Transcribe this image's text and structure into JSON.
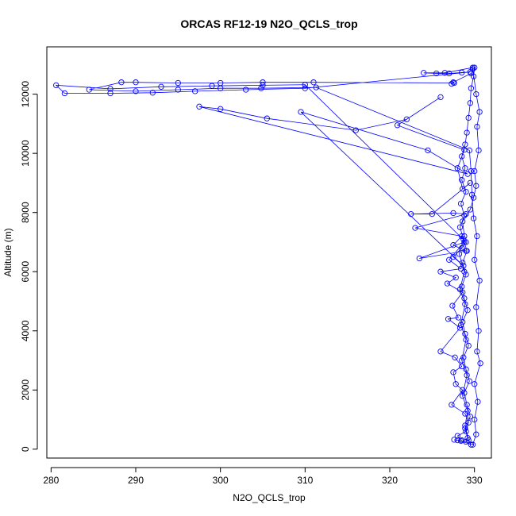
{
  "chart_data": {
    "type": "line",
    "title": "ORCAS RF12-19 N2O_QCLS_trop",
    "xlabel": "N2O_QCLS_trop",
    "ylabel": "Altitude (m)",
    "xlim": [
      279.5,
      332.0
    ],
    "ylim": [
      -300,
      13600
    ],
    "x_ticks": [
      280,
      290,
      300,
      310,
      320,
      330
    ],
    "y_ticks": [
      0,
      2000,
      4000,
      6000,
      8000,
      10000,
      12000
    ],
    "grid": false,
    "color": "#0000ff",
    "marker": "open-circle",
    "series": [
      {
        "points": [
          [
            329.6,
            150
          ],
          [
            329.2,
            380
          ],
          [
            328.9,
            700
          ],
          [
            329.5,
            1100
          ],
          [
            329.1,
            1500
          ],
          [
            328.8,
            1900
          ],
          [
            329.4,
            2300
          ],
          [
            329.0,
            2700
          ],
          [
            328.7,
            3100
          ],
          [
            329.3,
            3500
          ],
          [
            328.9,
            3900
          ],
          [
            328.6,
            4300
          ],
          [
            329.2,
            4700
          ],
          [
            328.8,
            5100
          ],
          [
            328.5,
            5500
          ],
          [
            329.0,
            5900
          ],
          [
            328.6,
            6300
          ],
          [
            329.1,
            6700
          ],
          [
            328.7,
            7100
          ],
          [
            328.3,
            7500
          ],
          [
            328.8,
            7900
          ],
          [
            328.4,
            8300
          ],
          [
            329.0,
            8700
          ],
          [
            328.5,
            9100
          ],
          [
            328.9,
            9500
          ],
          [
            328.5,
            9900
          ],
          [
            328.9,
            10300
          ],
          [
            329.1,
            10700
          ],
          [
            329.3,
            11200
          ],
          [
            329.5,
            11700
          ],
          [
            329.6,
            12200
          ],
          [
            329.9,
            12600
          ],
          [
            330.0,
            12900
          ],
          [
            329.8,
            12850
          ],
          [
            329.6,
            12700
          ],
          [
            327.5,
            12400
          ],
          [
            327.3,
            12350
          ],
          [
            327.6,
            12380
          ],
          [
            311.0,
            12400
          ],
          [
            305.0,
            12400
          ],
          [
            300.0,
            12380
          ],
          [
            295.0,
            12380
          ],
          [
            290.0,
            12400
          ],
          [
            288.3,
            12400
          ],
          [
            284.5,
            12150
          ],
          [
            290.0,
            12100
          ],
          [
            295.0,
            12150
          ],
          [
            300.0,
            12200
          ],
          [
            304.8,
            12200
          ],
          [
            311.3,
            12230
          ],
          [
            329.4,
            10100
          ],
          [
            329.6,
            9400
          ],
          [
            329.7,
            8600
          ],
          [
            329.9,
            7800
          ],
          [
            330.3,
            7200
          ],
          [
            330.0,
            6400
          ],
          [
            330.6,
            5700
          ],
          [
            330.2,
            4800
          ],
          [
            330.5,
            4000
          ],
          [
            330.3,
            3300
          ],
          [
            330.7,
            2900
          ],
          [
            330.0,
            2200
          ],
          [
            330.4,
            1600
          ],
          [
            330.0,
            1000
          ],
          [
            330.2,
            500
          ],
          [
            329.8,
            150
          ],
          [
            328.0,
            300
          ],
          [
            327.6,
            320
          ],
          [
            328.4,
            280
          ],
          [
            329.0,
            250
          ],
          [
            329.3,
            300
          ],
          [
            328.9,
            800
          ],
          [
            329.2,
            1300
          ],
          [
            328.6,
            1800
          ],
          [
            329.1,
            2500
          ],
          [
            328.5,
            3000
          ],
          [
            329.0,
            3700
          ],
          [
            328.4,
            4200
          ],
          [
            328.9,
            4900
          ],
          [
            328.3,
            5400
          ],
          [
            328.8,
            6000
          ],
          [
            328.2,
            6600
          ],
          [
            328.8,
            7200
          ],
          [
            328.6,
            7700
          ],
          [
            329.5,
            8100
          ],
          [
            329.9,
            8500
          ],
          [
            330.2,
            8900
          ],
          [
            330.0,
            9400
          ],
          [
            330.5,
            10100
          ],
          [
            330.3,
            10900
          ],
          [
            330.6,
            11400
          ],
          [
            330.2,
            12000
          ],
          [
            329.8,
            12900
          ],
          [
            326.5,
            12720
          ],
          [
            324.0,
            12720
          ],
          [
            325.5,
            12700
          ],
          [
            327.0,
            12700
          ],
          [
            328.5,
            12730
          ],
          [
            329.5,
            12750
          ],
          [
            310.0,
            12200
          ],
          [
            303.0,
            12150
          ],
          [
            297.0,
            12100
          ],
          [
            292.0,
            12050
          ],
          [
            287.0,
            12030
          ],
          [
            281.6,
            12030
          ],
          [
            280.6,
            12300
          ],
          [
            287.0,
            12180
          ],
          [
            293.0,
            12250
          ],
          [
            299.0,
            12280
          ],
          [
            305.0,
            12300
          ],
          [
            310.0,
            12320
          ],
          [
            329.0,
            7000
          ],
          [
            328.5,
            6800
          ],
          [
            327.5,
            6500
          ],
          [
            328.7,
            6200
          ],
          [
            309.5,
            11400
          ],
          [
            324.5,
            10100
          ],
          [
            329.2,
            9300
          ],
          [
            297.5,
            11580
          ],
          [
            300.0,
            11500
          ],
          [
            305.5,
            11180
          ],
          [
            316.0,
            10780
          ],
          [
            322.0,
            11150
          ],
          [
            326.0,
            11900
          ],
          [
            320.9,
            10950
          ],
          [
            328.8,
            10120
          ],
          [
            328.0,
            9500
          ],
          [
            328.6,
            8800
          ],
          [
            329.5,
            9000
          ],
          [
            325.0,
            7950
          ],
          [
            322.5,
            7950
          ],
          [
            327.5,
            7980
          ],
          [
            329.0,
            7950
          ],
          [
            323.0,
            7480
          ],
          [
            328.5,
            7200
          ],
          [
            327.5,
            6900
          ],
          [
            329.0,
            6700
          ],
          [
            323.5,
            6450
          ],
          [
            328.8,
            7000
          ],
          [
            327.0,
            6400
          ],
          [
            328.4,
            6100
          ],
          [
            326.0,
            6000
          ],
          [
            327.8,
            5800
          ],
          [
            326.8,
            5600
          ],
          [
            328.6,
            5300
          ],
          [
            327.4,
            4850
          ],
          [
            328.1,
            4450
          ],
          [
            326.9,
            4400
          ],
          [
            328.3,
            4100
          ],
          [
            326.0,
            3300
          ],
          [
            327.7,
            3100
          ],
          [
            328.5,
            2800
          ],
          [
            327.5,
            2600
          ],
          [
            327.8,
            2200
          ],
          [
            328.6,
            2000
          ],
          [
            327.3,
            1500
          ],
          [
            328.9,
            1200
          ],
          [
            329.3,
            900
          ],
          [
            329.0,
            600
          ],
          [
            328.0,
            450
          ],
          [
            328.5,
            300
          ]
        ]
      }
    ]
  }
}
